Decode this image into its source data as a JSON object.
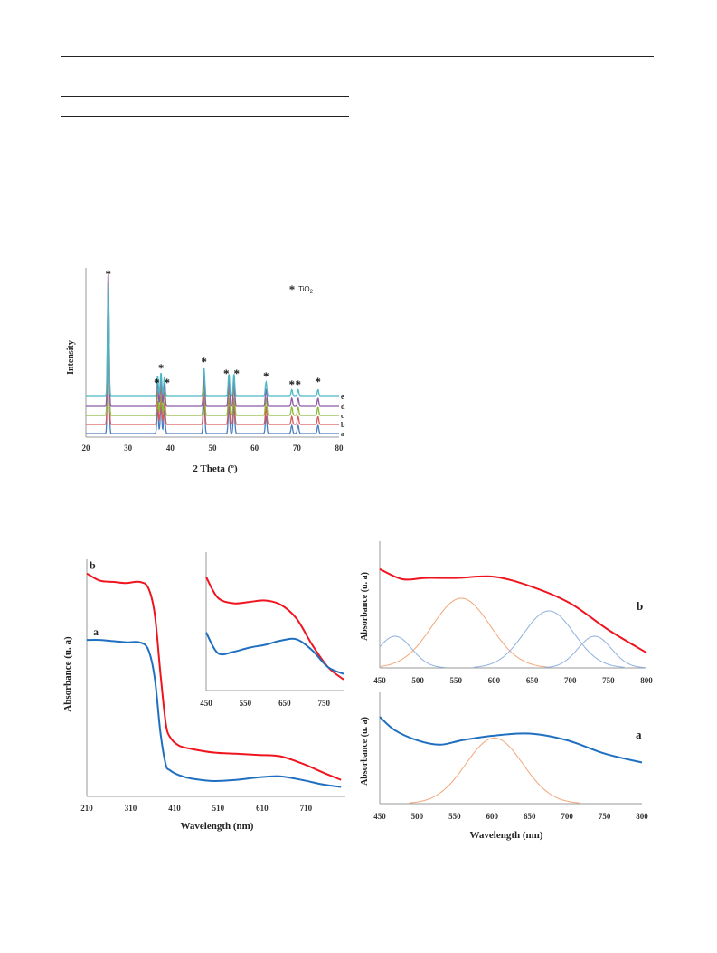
{
  "colors": {
    "teal": "#4BB8C4",
    "purple": "#8E5BA6",
    "green": "#8DBA3E",
    "red": "#D95A5A",
    "blue": "#4A7DC0",
    "uv_red": "#F0141E",
    "uv_blue": "#1F6FC0",
    "orange": "#F2A77A",
    "light_blue": "#8FB0DE"
  },
  "chart_data": [
    {
      "type": "line",
      "ylabel": "Intensity",
      "xlabel": "2 Theta (º)",
      "xlim": [
        20,
        80
      ],
      "xticks": [
        "20",
        "30",
        "40",
        "50",
        "60",
        "70",
        "80"
      ],
      "legend": {
        "marker": "*",
        "text": "TiO",
        "sub": "2"
      },
      "peaks": [
        25.3,
        37.0,
        37.8,
        38.6,
        48.0,
        53.9,
        55.1,
        62.7,
        68.8,
        70.3,
        75.0
      ],
      "series": [
        {
          "name": "a",
          "color": "#4A7DC0"
        },
        {
          "name": "b",
          "color": "#D95A5A"
        },
        {
          "name": "c",
          "color": "#8DBA3E"
        },
        {
          "name": "d",
          "color": "#8E5BA6"
        },
        {
          "name": "e",
          "color": "#4BB8C4"
        }
      ]
    },
    {
      "type": "line",
      "xlabel": "Wavelength (nm)",
      "ylabel": "Absorbance (u. a)",
      "xlim": [
        210,
        800
      ],
      "xticks": [
        "210",
        "310",
        "410",
        "510",
        "610",
        "710"
      ],
      "series": [
        {
          "name": "b",
          "color": "#F0141E",
          "x": [
            210,
            240,
            270,
            300,
            330,
            350,
            365,
            378,
            390,
            400,
            420,
            450,
            500,
            550,
            600,
            650,
            700,
            750,
            790
          ],
          "y": [
            0.94,
            0.91,
            0.905,
            0.9,
            0.905,
            0.88,
            0.77,
            0.52,
            0.31,
            0.25,
            0.215,
            0.2,
            0.185,
            0.18,
            0.175,
            0.17,
            0.14,
            0.1,
            0.07
          ]
        },
        {
          "name": "a",
          "color": "#1F6FC0",
          "x": [
            210,
            240,
            270,
            300,
            330,
            350,
            365,
            378,
            390,
            400,
            420,
            450,
            500,
            550,
            600,
            650,
            700,
            750,
            790
          ],
          "y": [
            0.66,
            0.66,
            0.655,
            0.65,
            0.65,
            0.62,
            0.5,
            0.27,
            0.135,
            0.11,
            0.09,
            0.075,
            0.065,
            0.07,
            0.08,
            0.085,
            0.07,
            0.05,
            0.04
          ]
        }
      ],
      "inset": {
        "xlim": [
          450,
          800
        ],
        "xticks": [
          "450",
          "550",
          "650",
          "750"
        ],
        "series": [
          {
            "name": "b",
            "x": [
              450,
              480,
              520,
              560,
              600,
              640,
              680,
              720,
              760,
              800
            ],
            "y": [
              0.82,
              0.67,
              0.63,
              0.64,
              0.65,
              0.62,
              0.52,
              0.33,
              0.17,
              0.08
            ]
          },
          {
            "name": "a",
            "x": [
              450,
              480,
              520,
              560,
              600,
              640,
              680,
              720,
              760,
              800
            ],
            "y": [
              0.42,
              0.27,
              0.28,
              0.31,
              0.33,
              0.36,
              0.37,
              0.29,
              0.17,
              0.12
            ]
          }
        ]
      }
    },
    {
      "type": "line",
      "ylabel": "Absorbance (u. a)",
      "xlim": [
        450,
        800
      ],
      "xticks": [
        "450",
        "500",
        "550",
        "600",
        "650",
        "700",
        "750",
        "800"
      ],
      "label": "b",
      "series": [
        {
          "name": "b",
          "color": "#F0141E",
          "x": [
            450,
            480,
            510,
            550,
            600,
            650,
            700,
            750,
            800
          ],
          "y": [
            0.78,
            0.7,
            0.71,
            0.71,
            0.72,
            0.64,
            0.51,
            0.3,
            0.12
          ]
        }
      ],
      "components": [
        {
          "center": 470,
          "height": 0.25,
          "width": 22,
          "color": "#8FB0DE"
        },
        {
          "center": 557,
          "height": 0.55,
          "width": 38,
          "color": "#F2A77A"
        },
        {
          "center": 672,
          "height": 0.45,
          "width": 33,
          "color": "#8FB0DE"
        },
        {
          "center": 732,
          "height": 0.25,
          "width": 22,
          "color": "#8FB0DE"
        }
      ]
    },
    {
      "type": "line",
      "xlabel": "Wavelength (nm)",
      "ylabel": "Absorbance (u. a)",
      "xlim": [
        450,
        800
      ],
      "xticks": [
        "450",
        "500",
        "550",
        "600",
        "650",
        "700",
        "750",
        "800"
      ],
      "label": "a",
      "series": [
        {
          "name": "a",
          "color": "#1F6FC0",
          "x": [
            450,
            470,
            500,
            530,
            560,
            600,
            650,
            700,
            750,
            800
          ],
          "y": [
            0.78,
            0.66,
            0.57,
            0.53,
            0.57,
            0.61,
            0.63,
            0.57,
            0.45,
            0.37
          ]
        }
      ],
      "components": [
        {
          "center": 603,
          "height": 0.59,
          "width": 38,
          "color": "#F2A77A"
        }
      ]
    }
  ]
}
